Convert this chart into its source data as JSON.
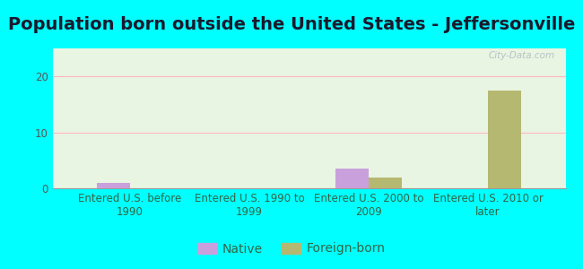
{
  "title": "Population born outside the United States - Jeffersonville",
  "categories": [
    "Entered U.S. before\n1990",
    "Entered U.S. 1990 to\n1999",
    "Entered U.S. 2000 to\n2009",
    "Entered U.S. 2010 or\nlater"
  ],
  "native_values": [
    1.0,
    0,
    3.5,
    0
  ],
  "foreign_born_values": [
    0,
    0,
    2.0,
    17.5
  ],
  "native_color": "#c9a0dc",
  "foreign_born_color": "#b5b870",
  "ylim": [
    0,
    25
  ],
  "yticks": [
    0,
    10,
    20
  ],
  "background_color": "#00ffff",
  "plot_bg_color": "#e8f5e2",
  "grid_color": "#ffb6c1",
  "title_fontsize": 14,
  "tick_label_fontsize": 8.5,
  "legend_fontsize": 10,
  "bar_width": 0.28,
  "title_color": "#1a1a2e",
  "tick_color": "#336644",
  "ytick_color": "#555555"
}
